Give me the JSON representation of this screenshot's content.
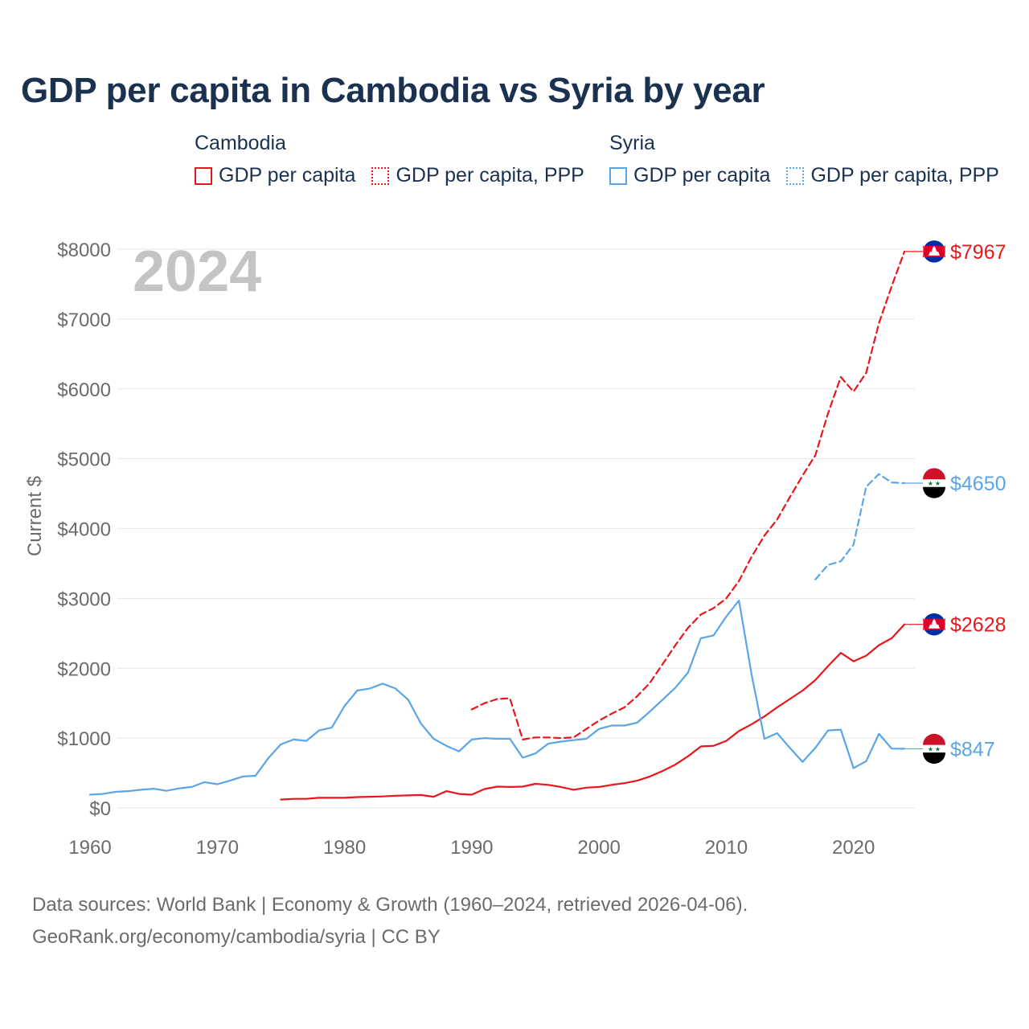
{
  "chart_data": {
    "type": "line",
    "title": "GDP per capita in Cambodia vs Syria by year",
    "year_label": "2024",
    "xlabel": "",
    "ylabel": "Current $",
    "xlim": [
      1960,
      2024
    ],
    "ylim": [
      0,
      8000
    ],
    "x_ticks": [
      1960,
      1970,
      1980,
      1990,
      2000,
      2010,
      2020
    ],
    "y_ticks": [
      0,
      1000,
      2000,
      3000,
      4000,
      5000,
      6000,
      7000,
      8000
    ],
    "y_tick_labels": [
      "$0",
      "$1000",
      "$2000",
      "$3000",
      "$4000",
      "$5000",
      "$6000",
      "$7000",
      "$8000"
    ],
    "legend": [
      {
        "group": "Cambodia",
        "items": [
          "GDP per capita",
          "GDP per capita, PPP"
        ]
      },
      {
        "group": "Syria",
        "items": [
          "GDP per capita",
          "GDP per capita, PPP"
        ]
      }
    ],
    "colors": {
      "cambodia": "#e8161c",
      "syria": "#5aa5e6"
    },
    "series": [
      {
        "name": "Cambodia GDP per capita",
        "country": "cambodia",
        "style": "solid",
        "end_label": "$2628",
        "x": [
          1975,
          1976,
          1977,
          1978,
          1979,
          1980,
          1981,
          1982,
          1983,
          1984,
          1985,
          1986,
          1987,
          1988,
          1989,
          1990,
          1991,
          1992,
          1993,
          1994,
          1995,
          1996,
          1997,
          1998,
          1999,
          2000,
          2001,
          2002,
          2003,
          2004,
          2005,
          2006,
          2007,
          2008,
          2009,
          2010,
          2011,
          2012,
          2013,
          2014,
          2015,
          2016,
          2017,
          2018,
          2019,
          2020,
          2021,
          2022,
          2023,
          2024
        ],
        "y": [
          120,
          130,
          130,
          145,
          145,
          145,
          155,
          160,
          165,
          175,
          180,
          185,
          160,
          240,
          200,
          190,
          270,
          305,
          300,
          305,
          345,
          330,
          300,
          260,
          290,
          300,
          330,
          355,
          390,
          450,
          530,
          620,
          740,
          880,
          890,
          960,
          1100,
          1200,
          1310,
          1440,
          1560,
          1680,
          1830,
          2030,
          2220,
          2100,
          2180,
          2330,
          2430,
          2628
        ]
      },
      {
        "name": "Cambodia GDP per capita, PPP",
        "country": "cambodia",
        "style": "dashed",
        "end_label": "$7967",
        "x": [
          1990,
          1991,
          1992,
          1993,
          1994,
          1995,
          1996,
          1997,
          1998,
          1999,
          2000,
          2001,
          2002,
          2003,
          2004,
          2005,
          2006,
          2007,
          2008,
          2009,
          2010,
          2011,
          2012,
          2013,
          2014,
          2015,
          2016,
          2017,
          2018,
          2019,
          2020,
          2021,
          2022,
          2023,
          2024
        ],
        "y": [
          1410,
          1500,
          1560,
          1570,
          980,
          1010,
          1010,
          1000,
          1010,
          1130,
          1250,
          1350,
          1440,
          1600,
          1790,
          2060,
          2330,
          2580,
          2770,
          2860,
          3000,
          3250,
          3600,
          3900,
          4130,
          4450,
          4760,
          5050,
          5650,
          6170,
          5960,
          6230,
          6940,
          7470,
          7967
        ]
      },
      {
        "name": "Syria GDP per capita",
        "country": "syria",
        "style": "solid",
        "end_label": "$847",
        "x": [
          1960,
          1961,
          1962,
          1963,
          1964,
          1965,
          1966,
          1967,
          1968,
          1969,
          1970,
          1971,
          1972,
          1973,
          1974,
          1975,
          1976,
          1977,
          1978,
          1979,
          1980,
          1981,
          1982,
          1983,
          1984,
          1985,
          1986,
          1987,
          1988,
          1989,
          1990,
          1991,
          1992,
          1993,
          1994,
          1995,
          1996,
          1997,
          1998,
          1999,
          2000,
          2001,
          2002,
          2003,
          2004,
          2005,
          2006,
          2007,
          2008,
          2009,
          2010,
          2011,
          2012,
          2013,
          2014,
          2015,
          2016,
          2017,
          2018,
          2019,
          2020,
          2021,
          2022,
          2023,
          2024
        ],
        "y": [
          190,
          200,
          230,
          240,
          260,
          275,
          245,
          280,
          300,
          370,
          340,
          390,
          450,
          460,
          710,
          910,
          980,
          960,
          1110,
          1150,
          1460,
          1680,
          1710,
          1780,
          1710,
          1550,
          1210,
          990,
          890,
          810,
          980,
          1000,
          990,
          990,
          720,
          780,
          920,
          950,
          970,
          990,
          1130,
          1180,
          1180,
          1220,
          1380,
          1550,
          1720,
          1940,
          2430,
          2470,
          2740,
          2970,
          1900,
          990,
          1070,
          860,
          660,
          860,
          1110,
          1120,
          570,
          670,
          1060,
          850,
          847
        ]
      },
      {
        "name": "Syria GDP per capita, PPP",
        "country": "syria",
        "style": "dashed",
        "end_label": "$4650",
        "x": [
          2017,
          2018,
          2019,
          2020,
          2021,
          2022,
          2023,
          2024
        ],
        "y": [
          3270,
          3480,
          3530,
          3770,
          4600,
          4780,
          4660,
          4650
        ]
      }
    ],
    "footer_source": "Data sources: World Bank | Economy & Growth (1960–2024, retrieved 2026-04-06).",
    "footer_link": "GeoRank.org/economy/cambodia/syria | CC BY"
  }
}
